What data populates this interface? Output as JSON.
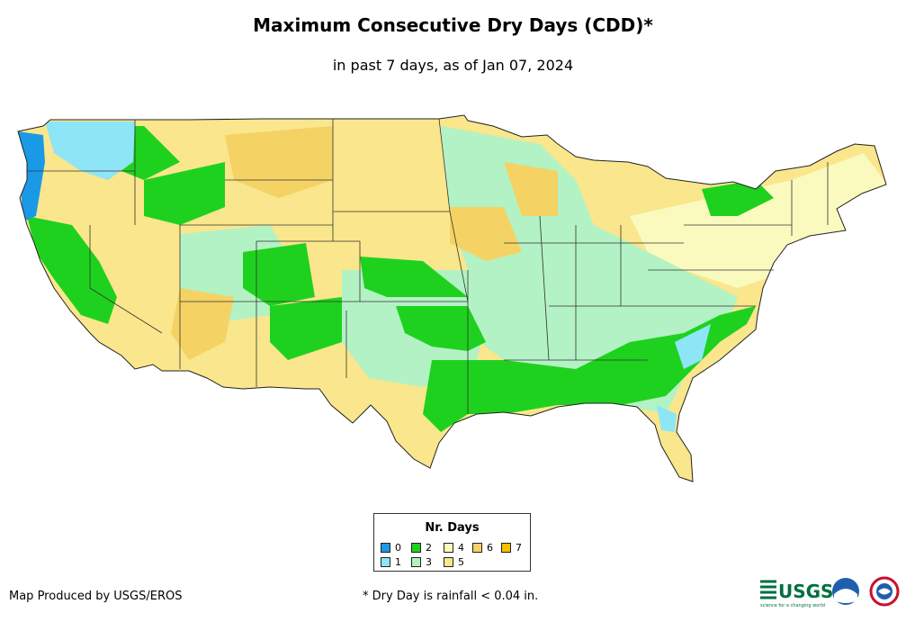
{
  "title": "Maximum Consecutive Dry Days (CDD)*",
  "subtitle": "in past 7 days, as of Jan 07, 2024",
  "legend": {
    "title": "Nr. Days",
    "items": [
      {
        "label": "0",
        "color": "#1a9ae6"
      },
      {
        "label": "1",
        "color": "#8ee5f5"
      },
      {
        "label": "2",
        "color": "#1fd11f"
      },
      {
        "label": "3",
        "color": "#b3f2c4"
      },
      {
        "label": "4",
        "color": "#fafabe"
      },
      {
        "label": "5",
        "color": "#fae68c"
      },
      {
        "label": "6",
        "color": "#f5d264"
      },
      {
        "label": "7",
        "color": "#f5c000"
      }
    ]
  },
  "footer": {
    "credit": "Map Produced by USGS/EROS",
    "footnote": "* Dry Day is rainfall < 0.04 in."
  },
  "logos": {
    "usgs_text": "USGS",
    "usgs_tagline": "science for a changing world",
    "noaa_text": "noaa"
  }
}
